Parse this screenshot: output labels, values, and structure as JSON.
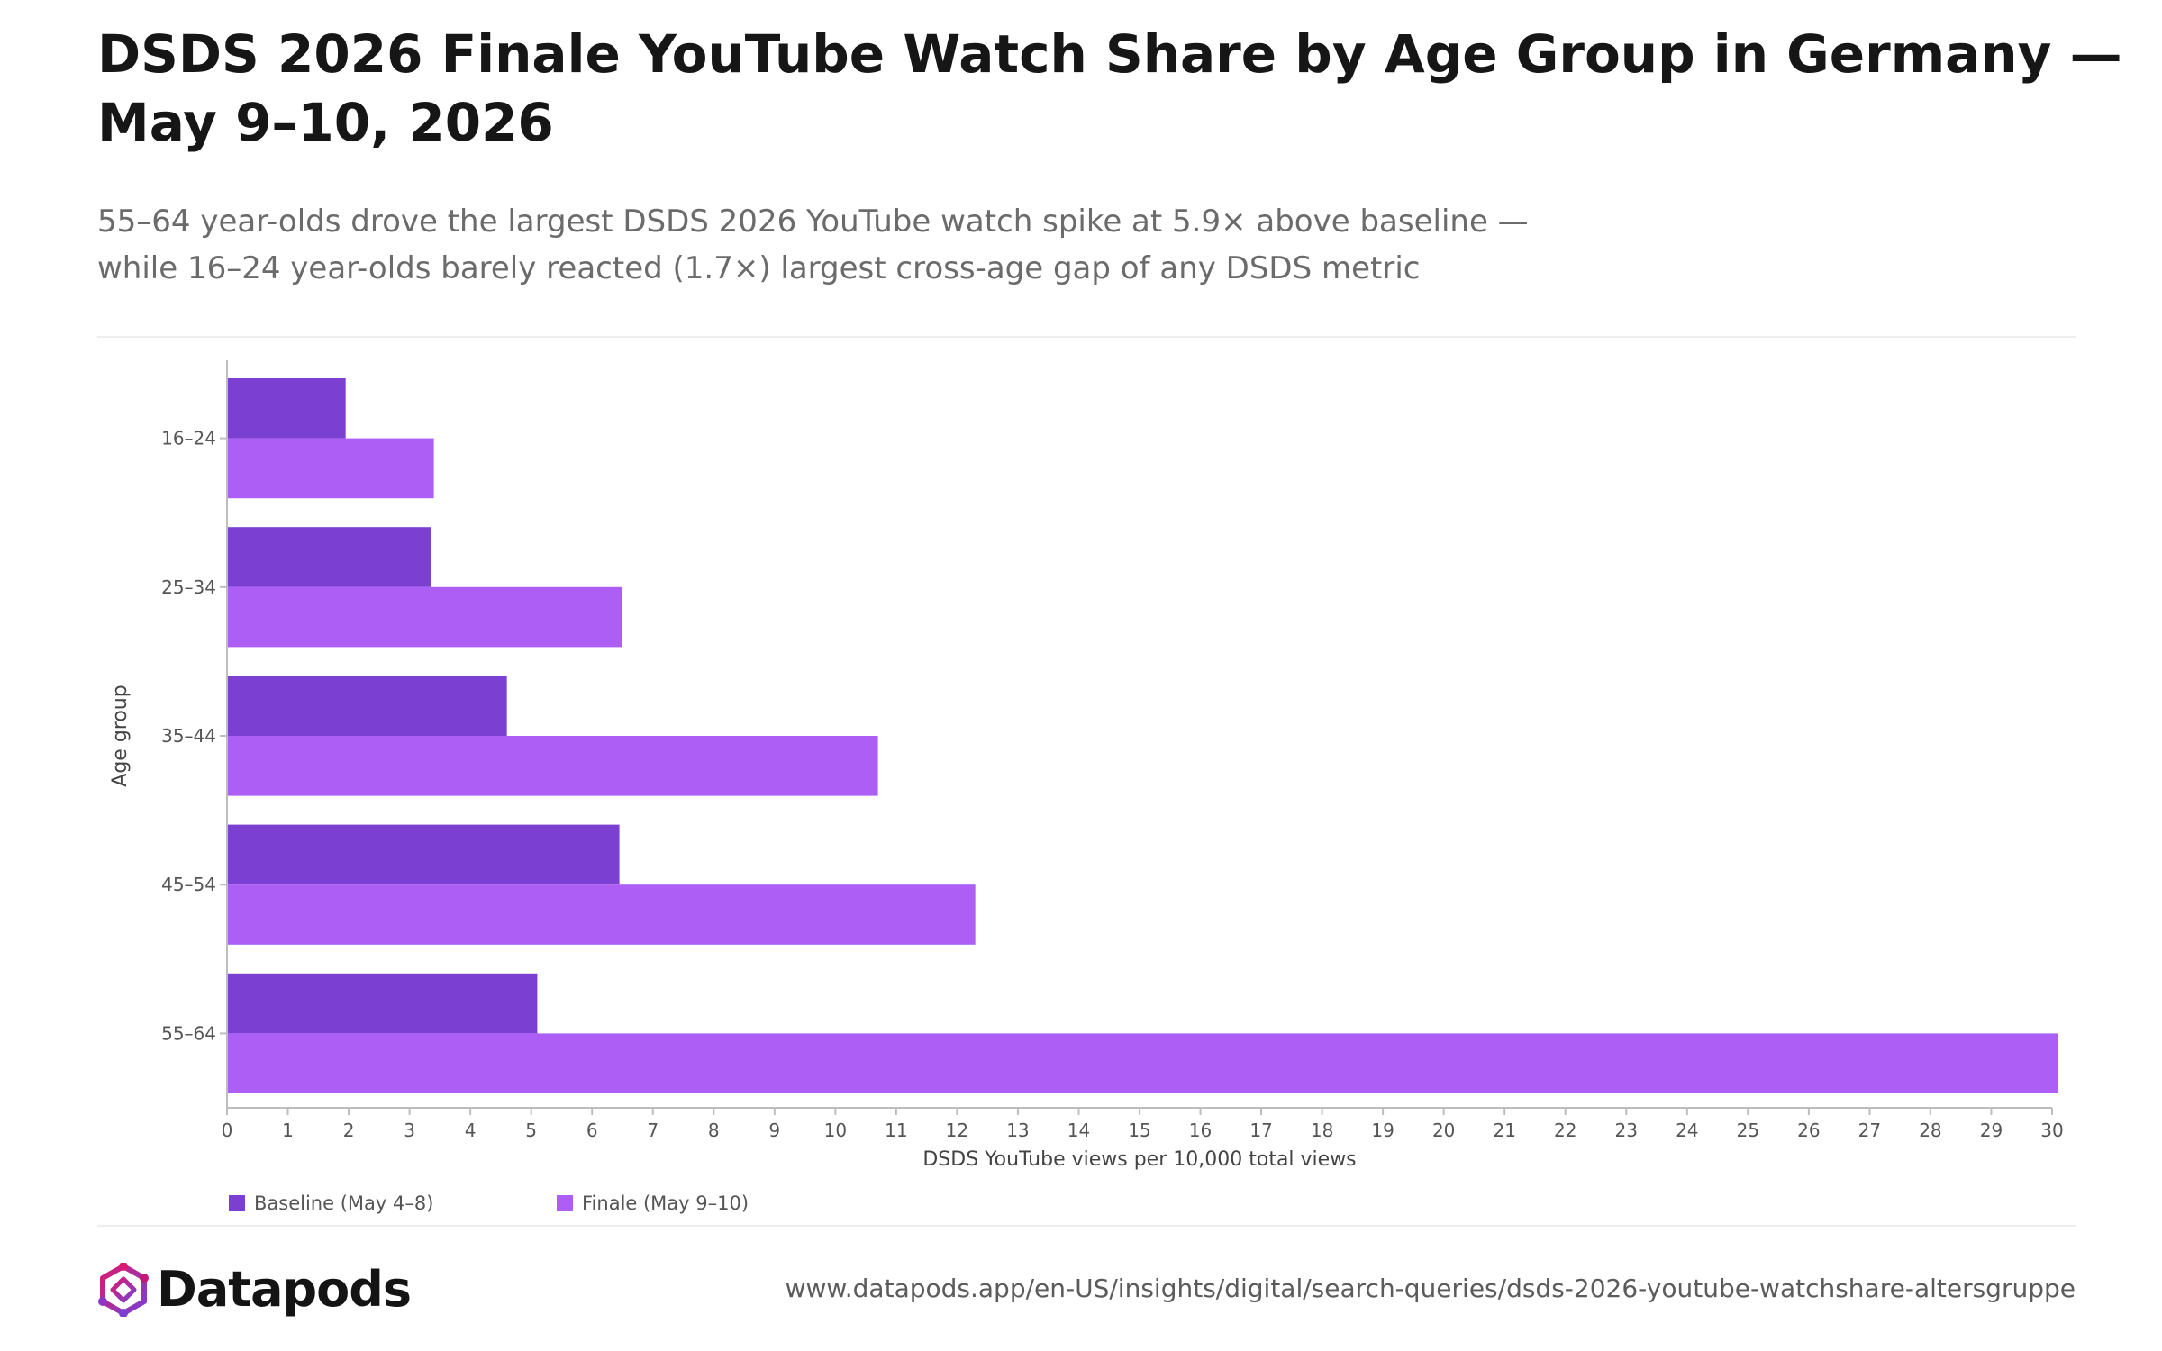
{
  "header": {
    "title": "DSDS 2026 Finale YouTube Watch Share by Age Group in Germany — May 9–10, 2026",
    "subtitle_line1": "55–64 year-olds drove the largest DSDS 2026 YouTube watch spike at 5.9× above baseline —",
    "subtitle_line2": "while 16–24 year-olds barely reacted (1.7×) largest cross-age gap of any DSDS metric"
  },
  "chart_data": {
    "type": "bar",
    "orientation": "horizontal",
    "categories": [
      "16–24",
      "25–34",
      "35–44",
      "45–54",
      "55–64"
    ],
    "series": [
      {
        "name": "Baseline (May 4–8)",
        "color": "#7b3fd2",
        "values": [
          1.95,
          3.35,
          4.6,
          6.45,
          5.1
        ]
      },
      {
        "name": "Finale (May 9–10)",
        "color": "#ac5ef5",
        "values": [
          3.4,
          6.5,
          10.7,
          12.3,
          30.1
        ]
      }
    ],
    "xlabel": "DSDS YouTube views per 10,000 total views",
    "ylabel": "Age group",
    "xlim": [
      0,
      30
    ],
    "xticks": [
      "0",
      "1",
      "2",
      "3",
      "4",
      "5",
      "6",
      "7",
      "8",
      "9",
      "10",
      "11",
      "12",
      "13",
      "14",
      "15",
      "16",
      "17",
      "18",
      "19",
      "20",
      "21",
      "22",
      "23",
      "24",
      "25",
      "26",
      "27",
      "28",
      "29",
      "30"
    ],
    "grid": false,
    "legend_position": "bottom-left"
  },
  "footer": {
    "brand": "Datapods",
    "source_url": "www.datapods.app/en-US/insights/digital/search-queries/dsds-2026-youtube-watchshare-altersgruppe",
    "brand_colors": [
      "#c2187a",
      "#7b3fd2"
    ]
  }
}
